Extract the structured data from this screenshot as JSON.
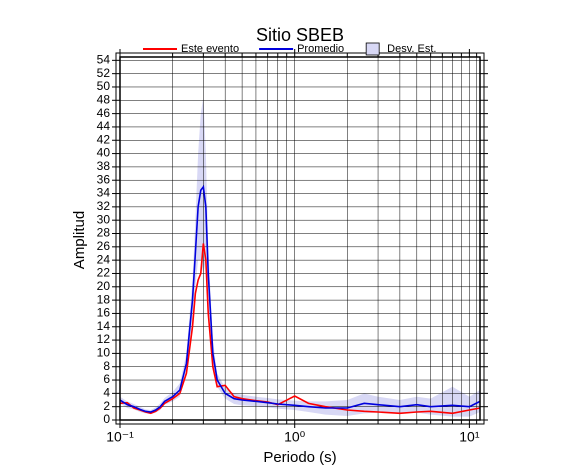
{
  "chart_data": {
    "type": "line",
    "title": "Sitio SBEB",
    "xlabel": "Periodo (s)",
    "ylabel": "Amplitud",
    "xscale": "log",
    "grid": true,
    "legend": "top",
    "xlim": [
      0.1,
      11.5
    ],
    "ylim": [
      0,
      54.5
    ],
    "xticks": [
      {
        "value": 0.1,
        "label": "10⁻¹"
      },
      {
        "value": 1,
        "label": "10⁰"
      },
      {
        "value": 10,
        "label": "10¹"
      }
    ],
    "xminor": [
      0.2,
      0.3,
      0.4,
      0.5,
      0.6,
      0.7,
      0.8,
      0.9,
      2,
      3,
      4,
      5,
      6,
      7,
      8,
      9,
      11
    ],
    "yticks": [
      0,
      2,
      4,
      6,
      8,
      10,
      12,
      14,
      16,
      18,
      20,
      22,
      24,
      26,
      28,
      30,
      32,
      34,
      36,
      38,
      40,
      42,
      44,
      46,
      48,
      50,
      52,
      54
    ],
    "x": [
      0.1,
      0.11,
      0.12,
      0.13,
      0.14,
      0.15,
      0.16,
      0.17,
      0.18,
      0.2,
      0.22,
      0.24,
      0.26,
      0.27,
      0.28,
      0.29,
      0.3,
      0.31,
      0.32,
      0.34,
      0.36,
      0.4,
      0.45,
      0.5,
      0.6,
      0.7,
      0.8,
      1.0,
      1.2,
      1.5,
      2,
      2.5,
      3,
      4,
      5,
      6,
      8,
      10,
      11.5
    ],
    "band": {
      "name": "Desv. Est.",
      "color": "#d8d8f5",
      "upper": [
        3.5,
        2.8,
        2.4,
        2.0,
        1.6,
        1.5,
        1.9,
        2.5,
        3.3,
        4.2,
        5.5,
        10,
        21,
        30,
        40,
        46,
        48.5,
        40,
        26,
        12,
        7,
        4.8,
        4,
        3.8,
        3.5,
        3.3,
        3.1,
        2.9,
        2.8,
        2.8,
        3.0,
        4.0,
        3.5,
        3.0,
        3.5,
        3.2,
        5,
        3.5,
        4.5
      ],
      "lower": [
        2.5,
        1.8,
        1.6,
        1.2,
        1.0,
        0.9,
        1.1,
        1.5,
        2.3,
        2.8,
        3.5,
        7,
        15,
        20,
        24,
        24,
        22,
        24,
        18,
        8,
        5,
        3.2,
        2.4,
        2.2,
        2.1,
        1.9,
        1.7,
        1.5,
        1.2,
        0.8,
        0.6,
        1.0,
        1.1,
        1.0,
        1.1,
        0.8,
        0.5,
        0.5,
        1.2
      ]
    },
    "series": [
      {
        "name": "Este evento",
        "color": "#ff0000",
        "values": [
          2.5,
          2.6,
          1.8,
          1.5,
          1.2,
          1,
          1.3,
          1.8,
          2.5,
          3.2,
          4,
          7,
          14,
          19,
          21,
          22,
          26.5,
          24,
          16,
          8,
          5,
          5.2,
          3.5,
          3.2,
          2.9,
          2.7,
          2.3,
          3.6,
          2.5,
          2,
          1.5,
          1.3,
          1.2,
          1,
          1.2,
          1.3,
          1,
          1.5,
          1.8
        ]
      },
      {
        "name": "Promedio",
        "color": "#0000dd",
        "values": [
          3,
          2.3,
          2,
          1.6,
          1.3,
          1.2,
          1.5,
          2,
          2.8,
          3.5,
          4.5,
          8.5,
          18,
          25,
          32,
          34.5,
          35,
          32,
          22,
          10,
          6,
          4,
          3.2,
          3,
          2.8,
          2.6,
          2.4,
          2.2,
          2,
          1.8,
          1.8,
          2.5,
          2.3,
          2,
          2.3,
          2,
          2.2,
          2,
          2.8
        ]
      }
    ]
  }
}
